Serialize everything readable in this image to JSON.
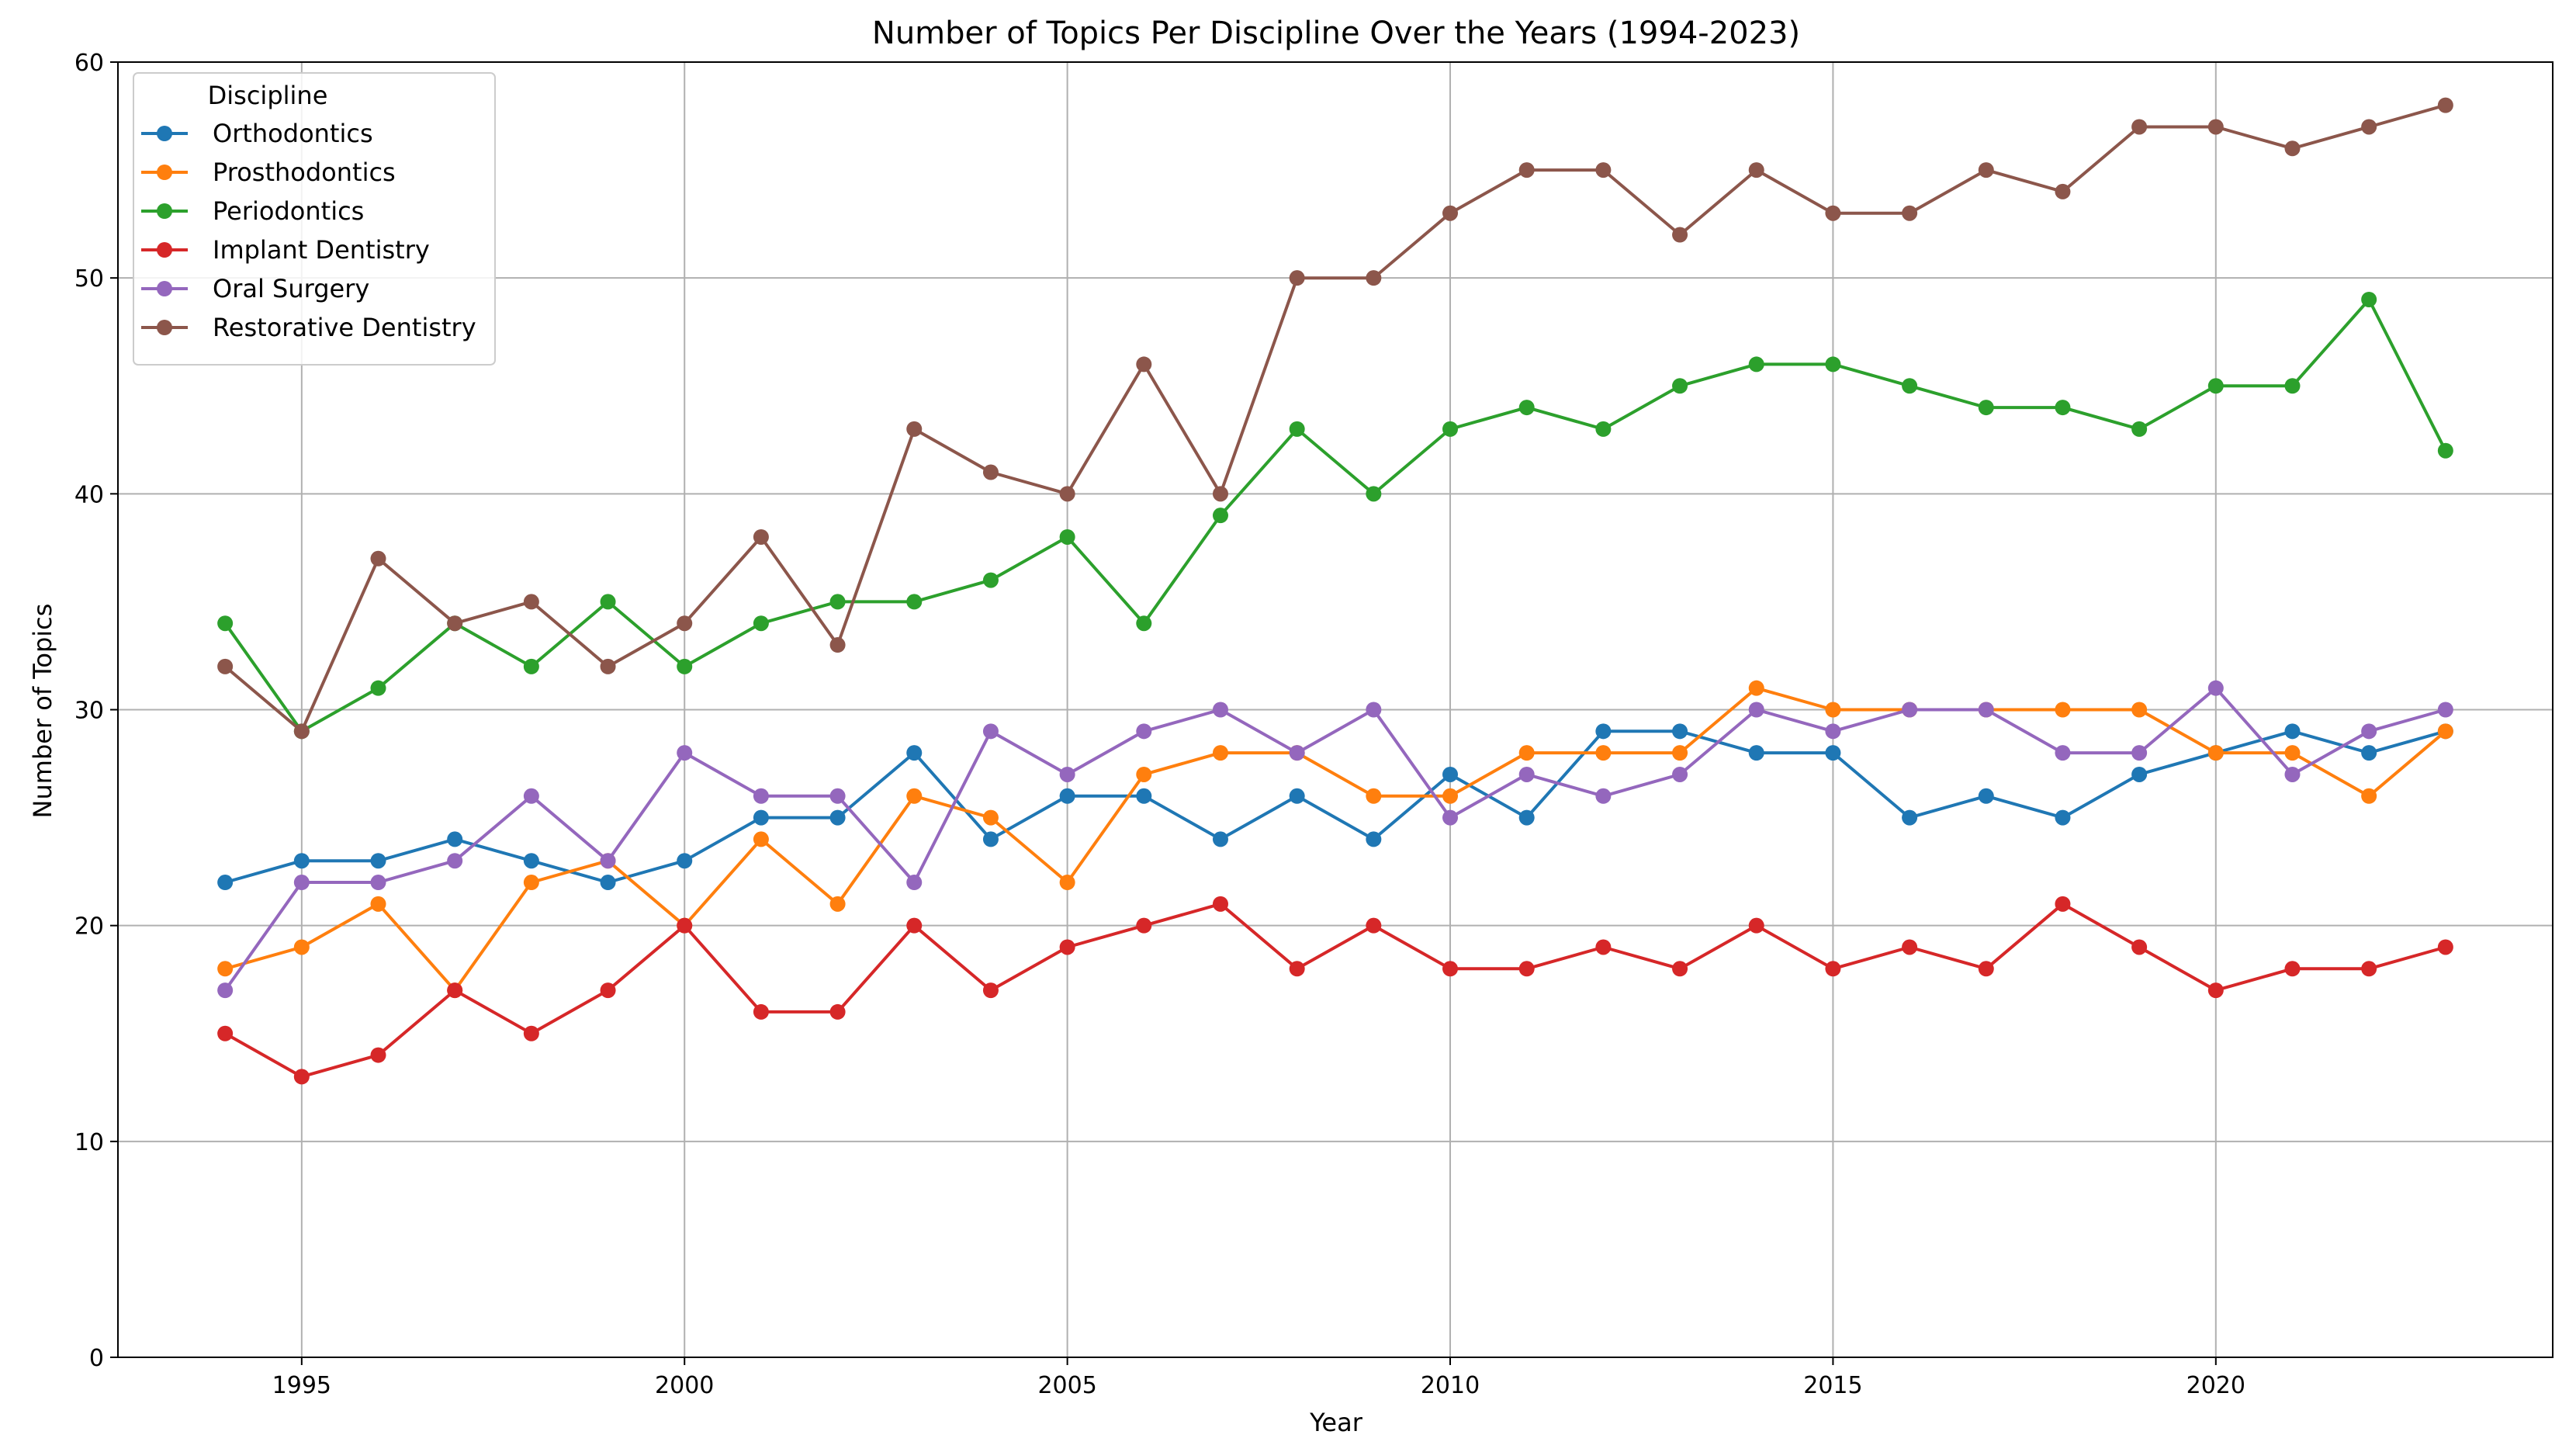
{
  "chart_data": {
    "type": "line",
    "title": "Number of Topics Per Discipline Over the Years (1994-2023)",
    "xlabel": "Year",
    "ylabel": "Number of Topics",
    "xlim": [
      1992.6,
      2024.4
    ],
    "ylim": [
      0,
      60
    ],
    "xticks": [
      1995,
      2000,
      2005,
      2010,
      2015,
      2020
    ],
    "yticks": [
      0,
      10,
      20,
      30,
      40,
      50,
      60
    ],
    "grid": true,
    "legend": {
      "title": "Discipline",
      "placement": "top-left"
    },
    "x": [
      1994,
      1995,
      1996,
      1997,
      1998,
      1999,
      2000,
      2001,
      2002,
      2003,
      2004,
      2005,
      2006,
      2007,
      2008,
      2009,
      2010,
      2011,
      2012,
      2013,
      2014,
      2015,
      2016,
      2017,
      2018,
      2019,
      2020,
      2021,
      2022,
      2023
    ],
    "series": [
      {
        "name": "Orthodontics",
        "color": "#1f77b4",
        "values": [
          22,
          23,
          23,
          24,
          23,
          22,
          23,
          25,
          25,
          28,
          24,
          26,
          26,
          24,
          26,
          24,
          27,
          25,
          29,
          29,
          28,
          28,
          25,
          26,
          25,
          27,
          28,
          29,
          28,
          29
        ]
      },
      {
        "name": "Prosthodontics",
        "color": "#ff7f0e",
        "values": [
          18,
          19,
          21,
          17,
          22,
          23,
          20,
          24,
          21,
          26,
          25,
          22,
          27,
          28,
          28,
          26,
          26,
          28,
          28,
          28,
          31,
          30,
          30,
          30,
          30,
          30,
          28,
          28,
          26,
          29
        ]
      },
      {
        "name": "Periodontics",
        "color": "#2ca02c",
        "values": [
          34,
          29,
          31,
          34,
          32,
          35,
          32,
          34,
          35,
          35,
          36,
          38,
          34,
          39,
          43,
          40,
          43,
          44,
          43,
          45,
          46,
          46,
          45,
          44,
          44,
          43,
          45,
          45,
          49,
          42
        ]
      },
      {
        "name": "Implant Dentistry",
        "color": "#d62728",
        "values": [
          15,
          13,
          14,
          17,
          15,
          17,
          20,
          16,
          16,
          20,
          17,
          19,
          20,
          21,
          18,
          20,
          18,
          18,
          19,
          18,
          20,
          18,
          19,
          18,
          21,
          19,
          17,
          18,
          18,
          19
        ]
      },
      {
        "name": "Oral Surgery",
        "color": "#9467bd",
        "values": [
          17,
          22,
          22,
          23,
          26,
          23,
          28,
          26,
          26,
          22,
          29,
          27,
          29,
          30,
          28,
          30,
          25,
          27,
          26,
          27,
          30,
          29,
          30,
          30,
          28,
          28,
          31,
          27,
          29,
          30
        ]
      },
      {
        "name": "Restorative Dentistry",
        "color": "#8c564b",
        "values": [
          32,
          29,
          37,
          34,
          35,
          32,
          34,
          38,
          33,
          43,
          41,
          40,
          46,
          40,
          50,
          50,
          53,
          55,
          55,
          52,
          55,
          53,
          53,
          55,
          54,
          57,
          57,
          56,
          57,
          58
        ]
      }
    ]
  }
}
